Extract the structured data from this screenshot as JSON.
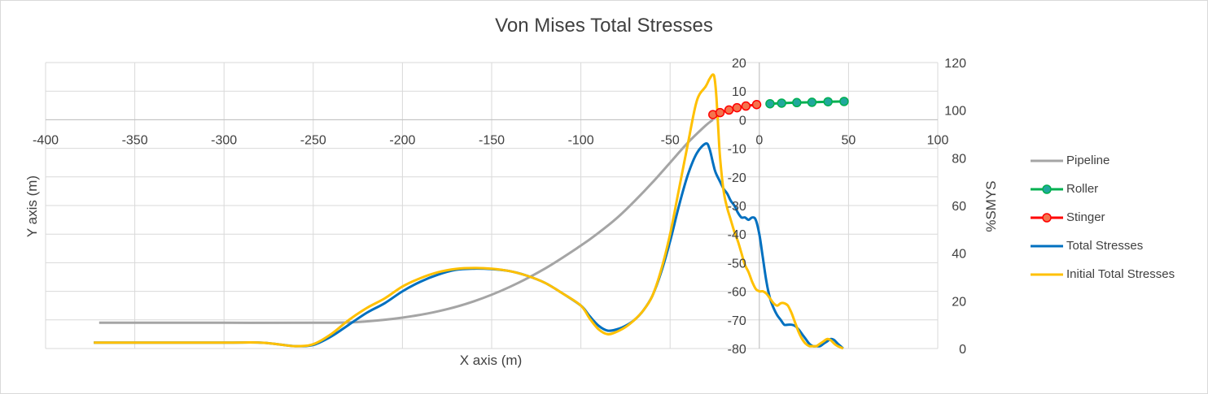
{
  "chart_data": {
    "type": "line",
    "title": "Von Mises Total Stresses",
    "xlabel": "X axis (m)",
    "ylabel": "Y axis (m)",
    "y2label": "%SMYS",
    "xlim": [
      -400,
      100
    ],
    "ylim": [
      -80,
      20
    ],
    "y2lim": [
      0,
      120
    ],
    "x_ticks": [
      -400,
      -350,
      -300,
      -250,
      -200,
      -150,
      -100,
      -50,
      0,
      50,
      100
    ],
    "y_ticks": [
      20,
      10,
      0,
      -10,
      -20,
      -30,
      -40,
      -50,
      -60,
      -70,
      -80
    ],
    "y2_ticks": [
      120,
      100,
      80,
      60,
      40,
      20,
      0
    ],
    "grid": true,
    "legend_position": "right",
    "series": [
      {
        "name": "Pipeline",
        "axis": "primary",
        "color": "#a5a5a5",
        "marker": "none",
        "x": [
          -370,
          -300,
          -240,
          -220,
          -200,
          -180,
          -160,
          -140,
          -120,
          -100,
          -90,
          -80,
          -70,
          -60,
          -50,
          -40,
          -30,
          -26
        ],
        "y": [
          -71,
          -71,
          -71,
          -70.5,
          -69.2,
          -67,
          -63.5,
          -58.5,
          -52,
          -44,
          -39.5,
          -34.5,
          -28.5,
          -22,
          -15,
          -8,
          -2,
          0
        ]
      },
      {
        "name": "Roller",
        "axis": "primary",
        "color": "#00b050",
        "marker_fill": "#21a89c",
        "marker": "circle",
        "x": [
          6,
          12.5,
          21,
          29.5,
          38.5,
          47.5
        ],
        "y": [
          5.6,
          5.8,
          6.0,
          6.1,
          6.3,
          6.4
        ]
      },
      {
        "name": "Stinger",
        "axis": "primary",
        "color": "#ff0000",
        "marker_fill": "#f4734d",
        "marker": "circle",
        "x": [
          -26,
          -22,
          -17,
          -12.5,
          -7.5,
          -1.5
        ],
        "y": [
          1.8,
          2.5,
          3.4,
          4.2,
          4.8,
          5.3
        ]
      },
      {
        "name": "Total Stresses",
        "axis": "secondary",
        "color": "#0070c0",
        "marker": "none",
        "x": [
          -373,
          -350,
          -300,
          -280,
          -270,
          -260,
          -250,
          -240,
          -230,
          -220,
          -210,
          -200,
          -190,
          -180,
          -170,
          -160,
          -150,
          -140,
          -130,
          -120,
          -110,
          -100,
          -95,
          -90,
          -85,
          -80,
          -75,
          -70,
          -65,
          -60,
          -55,
          -50,
          -45,
          -40,
          -35,
          -30,
          -28,
          -26,
          -25,
          -24,
          -22,
          -20,
          -18,
          -16,
          -14,
          -12,
          -10,
          -8,
          -6,
          -4,
          -2,
          0,
          2,
          4,
          6,
          8,
          10,
          12,
          14,
          16,
          18,
          20,
          22,
          24,
          26,
          28,
          30,
          32,
          34,
          36,
          38,
          40,
          42,
          44,
          47
        ],
        "y": [
          2.5,
          2.5,
          2.5,
          2.5,
          1.8,
          1.0,
          1.5,
          5,
          10,
          15,
          19,
          24,
          28,
          31,
          33,
          33.5,
          33.3,
          32.5,
          30.5,
          27.5,
          23,
          18,
          13.5,
          9.5,
          7.5,
          8,
          9.5,
          12,
          16,
          22,
          32,
          45,
          60,
          73,
          82,
          86,
          84,
          78,
          75,
          73,
          70,
          67,
          65,
          62,
          60,
          57,
          55,
          55,
          54,
          55,
          54,
          48,
          38,
          28,
          21,
          17,
          14,
          12,
          10,
          10,
          10,
          9.5,
          8,
          6,
          4,
          2,
          1,
          1,
          1,
          2,
          3,
          4,
          3.5,
          2,
          0
        ]
      },
      {
        "name": "Initial Total Stresses",
        "axis": "secondary",
        "color": "#ffc000",
        "marker": "none",
        "x": [
          -373,
          -350,
          -300,
          -280,
          -270,
          -260,
          -250,
          -240,
          -230,
          -220,
          -210,
          -200,
          -190,
          -180,
          -170,
          -160,
          -150,
          -140,
          -130,
          -120,
          -110,
          -100,
          -95,
          -90,
          -85,
          -80,
          -75,
          -70,
          -65,
          -60,
          -55,
          -50,
          -45,
          -40,
          -35,
          -30,
          -28,
          -26,
          -25,
          -24,
          -23,
          -22,
          -20,
          -18,
          -16,
          -14,
          -12,
          -10,
          -8,
          -6,
          -4,
          -2,
          0,
          2,
          4,
          6,
          8,
          10,
          12,
          14,
          16,
          18,
          20,
          22,
          24,
          26,
          28,
          30,
          32,
          34,
          36,
          38,
          40,
          42,
          44,
          47
        ],
        "y": [
          2.5,
          2.5,
          2.5,
          2.5,
          1.8,
          1.0,
          1.8,
          6,
          12,
          17,
          21,
          26,
          29.5,
          32,
          33.4,
          33.8,
          33.5,
          32.5,
          30.5,
          27.5,
          23,
          18,
          12.5,
          8,
          6,
          7,
          9,
          12,
          16,
          22,
          33,
          48,
          67,
          86,
          104,
          110,
          113,
          115,
          113,
          105,
          92,
          80,
          66,
          59,
          54,
          49,
          45,
          40,
          35,
          32,
          28,
          25,
          24,
          24,
          23,
          21,
          19,
          18,
          19,
          19,
          18,
          15,
          11,
          7,
          4,
          2,
          1,
          1,
          1,
          2,
          3,
          4,
          3.5,
          2,
          1,
          0
        ]
      }
    ]
  }
}
